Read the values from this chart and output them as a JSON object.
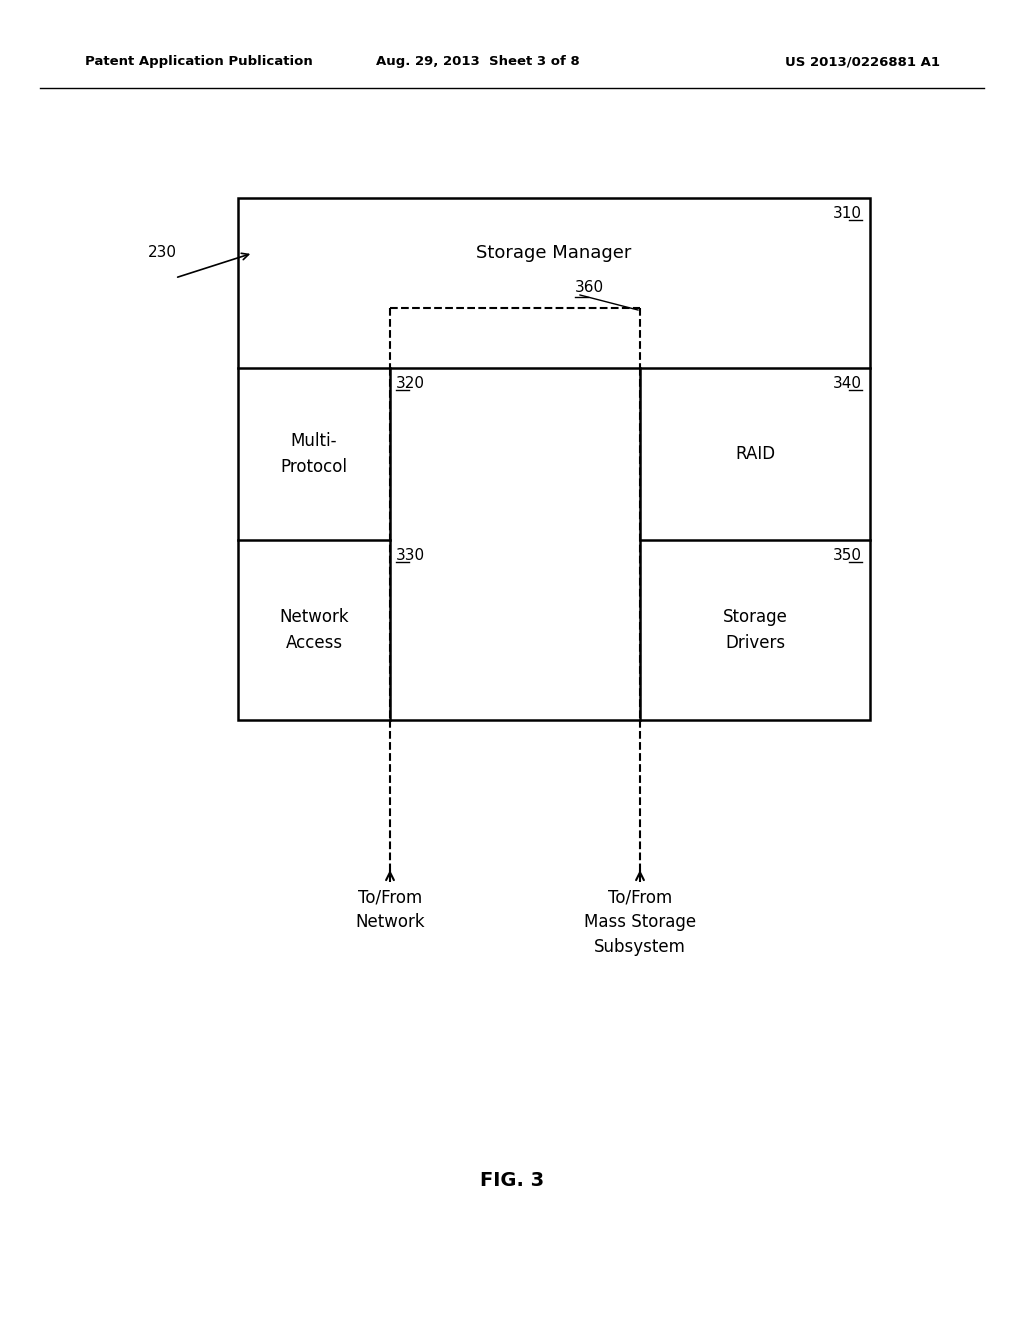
{
  "bg_color": "#ffffff",
  "text_color": "#000000",
  "header_left": "Patent Application Publication",
  "header_mid": "Aug. 29, 2013  Sheet 3 of 8",
  "header_right": "US 2013/0226881 A1",
  "fig_label": "FIG. 3",
  "label_230": "230",
  "label_310": "310",
  "label_320": "320",
  "label_330": "330",
  "label_340": "340",
  "label_350": "350",
  "label_360": "360",
  "text_storage_manager": "Storage Manager",
  "text_multi_protocol": "Multi-\nProtocol",
  "text_network_access": "Network\nAccess",
  "text_raid": "RAID",
  "text_storage_drivers": "Storage\nDrivers",
  "text_tofrom_network": "To/From\nNetwork",
  "text_tofrom_mass": "To/From\nMass Storage\nSubsystem",
  "font_size_labels": 12,
  "font_size_header": 9.5,
  "font_size_numbers": 11,
  "font_size_fig": 14
}
